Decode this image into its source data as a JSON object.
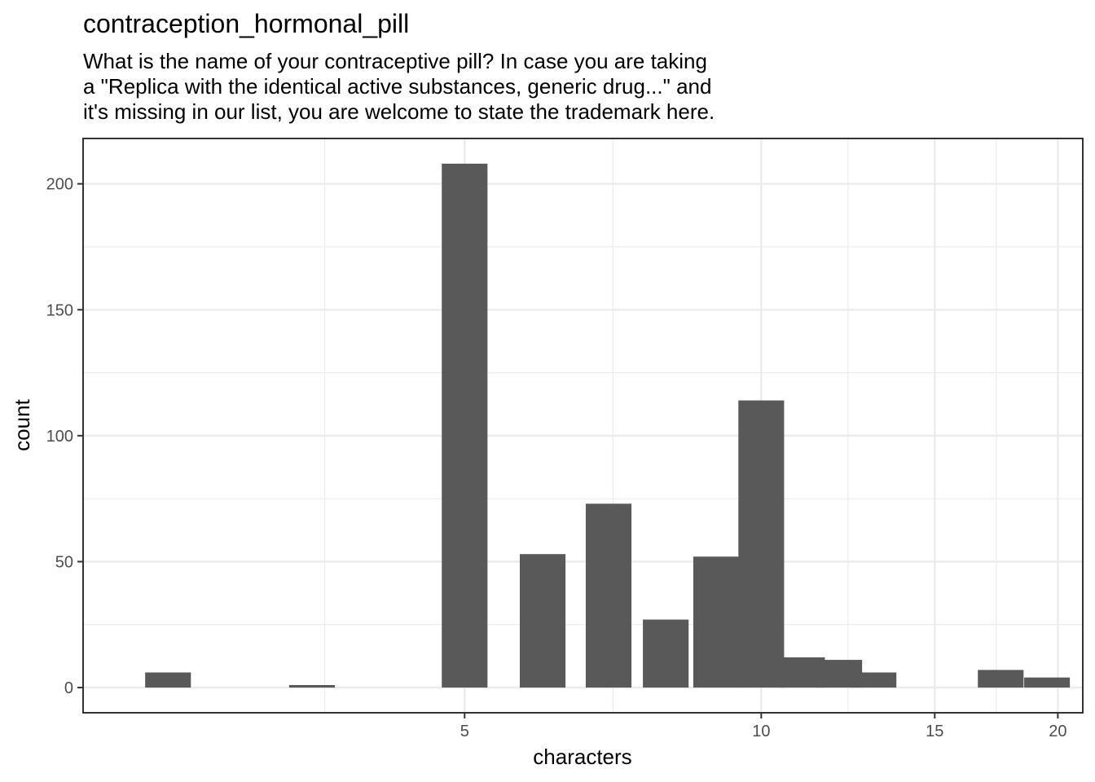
{
  "chart_data": {
    "type": "bar",
    "title": "contraception_hormonal_pill",
    "subtitle": [
      "What is the name of your contraceptive pill? In case you are taking",
      "a \"Replica with the identical active substances, generic drug...\" and",
      "it's missing in our list, you are welcome to state the trademark here."
    ],
    "xlabel": "characters",
    "ylabel": "count",
    "x_scale": "log",
    "xticks": [
      5,
      10,
      15,
      20
    ],
    "yticks": [
      0,
      50,
      100,
      150,
      200
    ],
    "ylim": [
      -10,
      218
    ],
    "xlim": [
      2.05,
      21.2
    ],
    "grid": true,
    "bar_color": "#595959",
    "panel_border_color": "#333333",
    "grid_color": "#ebebeb",
    "bars": [
      {
        "x": 2.5,
        "count": 6
      },
      {
        "x": 3.5,
        "count": 1
      },
      {
        "x": 5.0,
        "count": 208
      },
      {
        "x": 6.0,
        "count": 53
      },
      {
        "x": 7.0,
        "count": 73
      },
      {
        "x": 8.0,
        "count": 27
      },
      {
        "x": 9.0,
        "count": 52
      },
      {
        "x": 10.0,
        "count": 114
      },
      {
        "x": 11.0,
        "count": 12
      },
      {
        "x": 12.0,
        "count": 11
      },
      {
        "x": 13.0,
        "count": 6
      },
      {
        "x": 17.5,
        "count": 7
      },
      {
        "x": 19.5,
        "count": 4
      }
    ]
  }
}
